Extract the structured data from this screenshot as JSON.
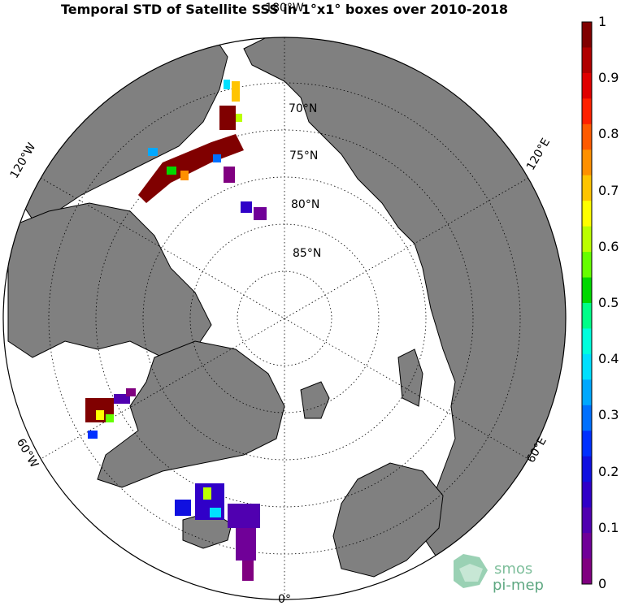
{
  "title": "Temporal STD of Satellite SSS in 1°x1° boxes over 2010-2018",
  "labels": {
    "lon_180": "180°W",
    "lon_120w": "120°W",
    "lon_120e": "120°E",
    "lon_60w": "60°W",
    "lon_60e": "60°E",
    "lon_0": "0°",
    "lat_70": "70°N",
    "lat_75": "75°N",
    "lat_80": "80°N",
    "lat_85": "85°N"
  },
  "colorbar": {
    "ticks": [
      "1",
      "0.9",
      "0.8",
      "0.7",
      "0.6",
      "0.5",
      "0.4",
      "0.3",
      "0.2",
      "0.1",
      "0"
    ],
    "colors": [
      "#800000",
      "#b00000",
      "#e00000",
      "#ff2000",
      "#ff5a00",
      "#ff9000",
      "#ffc400",
      "#ffff00",
      "#bbff00",
      "#66ff00",
      "#00d800",
      "#00ff88",
      "#00ffdd",
      "#00e0ff",
      "#00a8ff",
      "#0070ff",
      "#0030ff",
      "#1010e0",
      "#3000c8",
      "#5000b0",
      "#700098",
      "#800080"
    ]
  },
  "logo": {
    "line1": "smos",
    "line2": "pi-mep"
  },
  "colors": {
    "land": "#808080",
    "ocean": "#ffffff",
    "grid": "#000000"
  }
}
